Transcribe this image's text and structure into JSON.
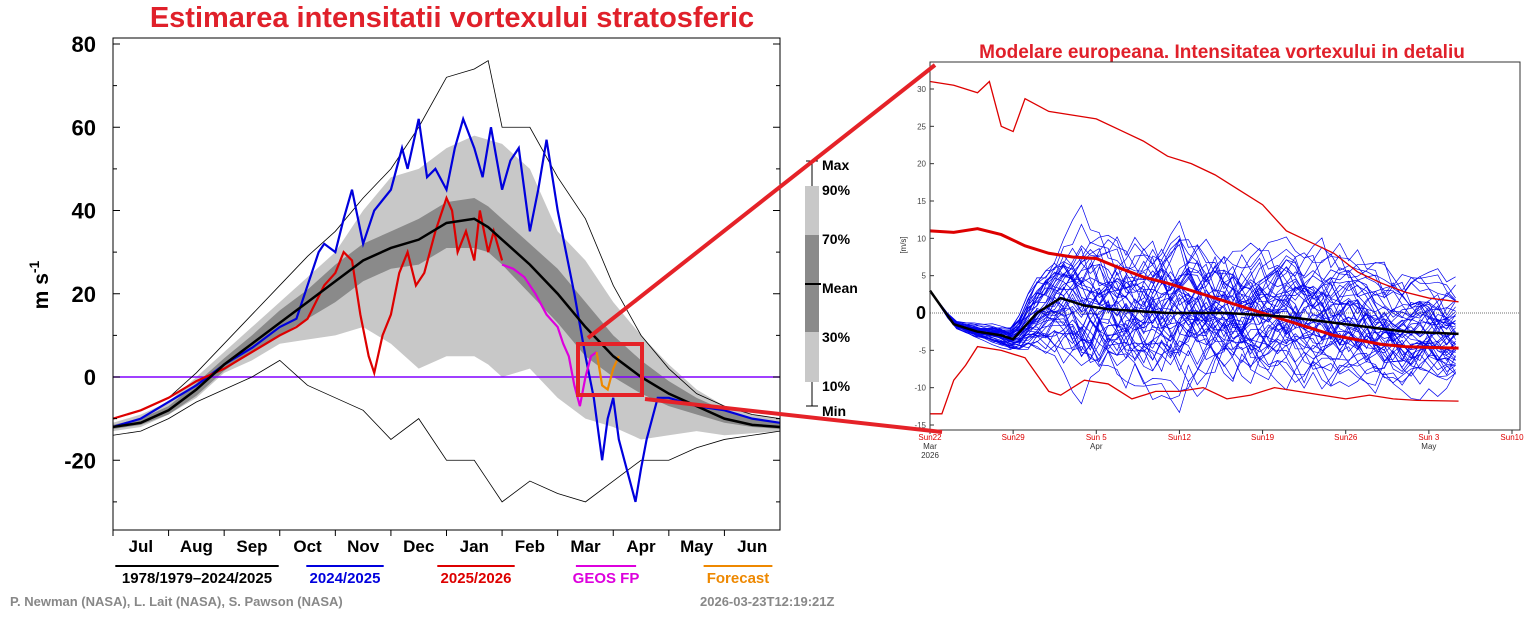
{
  "chart_data": [
    {
      "type": "area",
      "title": "Estimarea intensitatii vortexului stratosferic",
      "ylabel": "m s",
      "ylabel_sup": "-1",
      "xlabel": "",
      "x_units": "months since 1 Jul",
      "categories": [
        "Jul",
        "Aug",
        "Sep",
        "Oct",
        "Nov",
        "Dec",
        "Jan",
        "Feb",
        "Mar",
        "Apr",
        "May",
        "Jun"
      ],
      "yticks": [
        "80",
        "60",
        "40",
        "20",
        "0",
        "-20"
      ],
      "ytick_values": [
        80,
        60,
        40,
        20,
        0,
        -20
      ],
      "ylim": [
        -36,
        82
      ],
      "xlim": [
        0,
        12
      ],
      "zero_line_color": "#8000ff",
      "band_key": {
        "max": "Max",
        "p90": "90%",
        "p70": "70%",
        "mean": "Mean",
        "p30": "30%",
        "p10": "10%",
        "min": "Min"
      },
      "climatology": {
        "x": [
          0,
          0.5,
          1,
          1.5,
          2,
          2.5,
          3,
          3.5,
          4,
          4.5,
          5,
          5.5,
          6,
          6.5,
          6.75,
          7,
          7.5,
          8,
          8.5,
          9,
          9.5,
          10,
          10.5,
          11,
          11.5,
          12
        ],
        "max": [
          -10,
          -8,
          -5,
          1,
          8,
          15,
          22,
          29,
          35,
          43,
          50,
          60,
          72,
          74,
          76,
          60,
          60,
          48,
          38,
          22,
          10,
          2,
          -4,
          -7,
          -9,
          -10
        ],
        "p90": [
          -11,
          -9,
          -6,
          0,
          6,
          12,
          18,
          24,
          30,
          40,
          48,
          50,
          55,
          58,
          57,
          56,
          50,
          35,
          28,
          18,
          10,
          3,
          -3,
          -7,
          -9,
          -10
        ],
        "p70": [
          -11.5,
          -10,
          -7,
          -1.5,
          4.5,
          10,
          16,
          21,
          27,
          32,
          35,
          38,
          42,
          43,
          41,
          38,
          32,
          26,
          18,
          10,
          4,
          -1,
          -5,
          -8,
          -10,
          -11
        ],
        "mean": [
          -12,
          -11,
          -8,
          -3,
          3,
          8,
          13,
          18,
          23,
          28,
          31,
          33,
          37,
          38,
          36,
          33,
          27,
          20,
          12,
          5,
          0,
          -4,
          -7,
          -10,
          -11.5,
          -12
        ],
        "p30": [
          -12.5,
          -11.5,
          -9,
          -4.5,
          1.5,
          6,
          10,
          14,
          18,
          23,
          26,
          27,
          31,
          31,
          30,
          27,
          20,
          13,
          5,
          0,
          -4,
          -7,
          -9,
          -11,
          -12,
          -12.5
        ],
        "p10": [
          -13,
          -12,
          -9,
          -5,
          1,
          4,
          8,
          9,
          10,
          12,
          8,
          2,
          5,
          5,
          3,
          0,
          2,
          -5,
          -10,
          -12,
          -15,
          -14,
          -13,
          -14,
          -13.5,
          -13
        ],
        "min": [
          -14,
          -13,
          -10,
          -6,
          -3,
          0,
          4,
          -2,
          -5,
          -8,
          -15,
          -10,
          -20,
          -20,
          -25,
          -30,
          -25,
          -28,
          -30,
          -25,
          -20,
          -20,
          -17,
          -15,
          -14,
          -13
        ]
      },
      "series": [
        {
          "name": "1978/1979–2024/2025",
          "color": "#000000",
          "role": "mean"
        },
        {
          "name": "2024/2025",
          "color": "#0000dd",
          "x": [
            0,
            0.5,
            1,
            1.5,
            2,
            2.5,
            3,
            3.3,
            3.5,
            3.7,
            3.8,
            4,
            4.15,
            4.3,
            4.5,
            4.7,
            5,
            5.2,
            5.3,
            5.5,
            5.65,
            5.8,
            6,
            6.15,
            6.3,
            6.5,
            6.65,
            6.8,
            7,
            7.15,
            7.3,
            7.5,
            7.65,
            7.8,
            8,
            8.15,
            8.3,
            8.5,
            8.65,
            8.8,
            8.9,
            9,
            9.1,
            9.2,
            9.4,
            9.5,
            9.6,
            9.8,
            10,
            10.5,
            11,
            11.5,
            12
          ],
          "y": [
            -12,
            -10,
            -6,
            -2,
            3,
            7,
            12,
            14,
            22,
            30,
            32,
            30,
            38,
            45,
            32,
            40,
            45,
            55,
            50,
            62,
            48,
            50,
            45,
            55,
            62,
            55,
            48,
            60,
            45,
            52,
            55,
            35,
            45,
            57,
            40,
            30,
            20,
            5,
            -5,
            -20,
            -10,
            -5,
            -15,
            -20,
            -30,
            -22,
            -15,
            -5,
            -5,
            -7,
            -8,
            -10,
            -11
          ]
        },
        {
          "name": "2025/2026",
          "color": "#dd0000",
          "x": [
            0,
            0.5,
            1,
            1.5,
            2,
            2.5,
            3,
            3.3,
            3.5,
            3.8,
            4,
            4.15,
            4.3,
            4.45,
            4.6,
            4.7,
            4.85,
            5,
            5.15,
            5.3,
            5.45,
            5.6,
            5.8,
            6,
            6.1,
            6.2,
            6.35,
            6.5,
            6.6,
            6.75,
            6.85,
            7
          ],
          "y": [
            -10,
            -8,
            -5,
            -1,
            2,
            6,
            10,
            12,
            14,
            22,
            25,
            30,
            28,
            15,
            5,
            1,
            10,
            15,
            25,
            30,
            22,
            25,
            35,
            43,
            40,
            30,
            35,
            28,
            40,
            30,
            35,
            28
          ]
        },
        {
          "name": "GEOS FP",
          "color": "#dd00dd",
          "x": [
            7,
            7.2,
            7.4,
            7.6,
            7.8,
            8,
            8.1,
            8.2,
            8.3,
            8.4,
            8.5,
            8.6,
            8.7
          ],
          "y": [
            27,
            26,
            24,
            20,
            15,
            12,
            8,
            5,
            -2,
            -7,
            0,
            5,
            6
          ]
        },
        {
          "name": "Forecast",
          "color": "#ee8800",
          "x": [
            8.7,
            8.8,
            8.9,
            9.0,
            9.1
          ],
          "y": [
            6,
            -2,
            -3,
            2,
            5
          ]
        }
      ]
    },
    {
      "type": "line",
      "title": "Modelare europeana. Intensitatea vortexului in detaliu",
      "ylabel": "[m/s]",
      "yticks": [
        "30",
        "25",
        "20",
        "15",
        "10",
        "5",
        "0",
        "-5",
        "-10",
        "-15"
      ],
      "ytick_values": [
        30,
        25,
        20,
        15,
        10,
        5,
        0,
        -5,
        -10,
        -15
      ],
      "ylim": [
        -15.5,
        33
      ],
      "x_units": "days since Sun 22 Mar 2026",
      "xlim": [
        0,
        49
      ],
      "xticks": [
        {
          "day": 0,
          "label": "Sun22",
          "sub": "Mar",
          "sub2": "2026"
        },
        {
          "day": 7,
          "label": "Sun29",
          "sub": "",
          "sub2": ""
        },
        {
          "day": 14,
          "label": "Sun 5",
          "sub": "Apr",
          "sub2": ""
        },
        {
          "day": 21,
          "label": "Sun12",
          "sub": "",
          "sub2": ""
        },
        {
          "day": 28,
          "label": "Sun19",
          "sub": "",
          "sub2": ""
        },
        {
          "day": 35,
          "label": "Sun26",
          "sub": "",
          "sub2": ""
        },
        {
          "day": 42,
          "label": "Sun 3",
          "sub": "May",
          "sub2": ""
        },
        {
          "day": 49,
          "label": "Sun10",
          "sub": "",
          "sub2": ""
        }
      ],
      "zero_label": "0",
      "series": [
        {
          "role": "climate-max",
          "color": "#dd0000",
          "x": [
            0,
            2,
            4,
            5,
            6,
            7,
            8,
            10,
            12,
            14,
            16,
            18,
            20,
            22,
            24,
            26,
            28,
            30,
            32,
            34,
            36,
            38,
            40,
            42,
            44.5
          ],
          "y": [
            31,
            30.5,
            29.5,
            31,
            25,
            24.3,
            28.7,
            27,
            26.5,
            26,
            24.5,
            23,
            21,
            20,
            18.5,
            16.5,
            14.5,
            11,
            9.5,
            8,
            5.5,
            4,
            2.8,
            2,
            1.5
          ]
        },
        {
          "role": "climate-mean",
          "color": "#dd0000",
          "x": [
            0,
            2,
            4,
            6,
            8,
            10,
            12,
            14,
            16,
            18,
            20,
            22,
            24,
            26,
            28,
            30,
            32,
            34,
            36,
            38,
            40,
            42,
            44.5
          ],
          "y": [
            11,
            10.8,
            11.3,
            10.5,
            9,
            8,
            7.5,
            7.3,
            6,
            4.8,
            4,
            3,
            2,
            1,
            0,
            -1,
            -2,
            -3,
            -3.6,
            -4.2,
            -4.5,
            -4.6,
            -4.7
          ]
        },
        {
          "role": "climate-min",
          "color": "#dd0000",
          "x": [
            0,
            1,
            2,
            3,
            4,
            6,
            8,
            10,
            11,
            13,
            15,
            17,
            19,
            21,
            23,
            25,
            27,
            29,
            31,
            33,
            35,
            37,
            39,
            41,
            44.5
          ],
          "y": [
            -13.5,
            -13.5,
            -9,
            -7,
            -4.5,
            -5,
            -6,
            -10.5,
            -11,
            -9,
            -9.5,
            -11.5,
            -10.5,
            -10.5,
            -10,
            -11.5,
            -11,
            -10,
            -10.5,
            -11,
            -11.5,
            -11,
            -11.5,
            -11.7,
            -11.8
          ]
        },
        {
          "role": "ensemble-mean",
          "color": "#000000",
          "x": [
            0,
            2,
            4,
            6,
            7,
            9,
            11,
            13,
            15,
            20,
            25,
            30,
            35,
            40,
            44.5
          ],
          "y": [
            3,
            -1.5,
            -2.5,
            -3,
            -3.5,
            0,
            2,
            1,
            0.5,
            0,
            0,
            -0.5,
            -1.5,
            -2.5,
            -2.8
          ]
        }
      ],
      "ensemble": {
        "color": "#0000ee",
        "members": 50,
        "spread": {
          "x": [
            0,
            7,
            10,
            13,
            20,
            44.5
          ],
          "y": [
            0,
            0.8,
            3,
            5,
            5.2,
            3.5
          ]
        }
      }
    }
  ],
  "credits": {
    "authors": "P. Newman (NASA), L. Lait (NASA), S. Pawson (NASA)",
    "timestamp": "2026-03-23T12:19:21Z"
  }
}
